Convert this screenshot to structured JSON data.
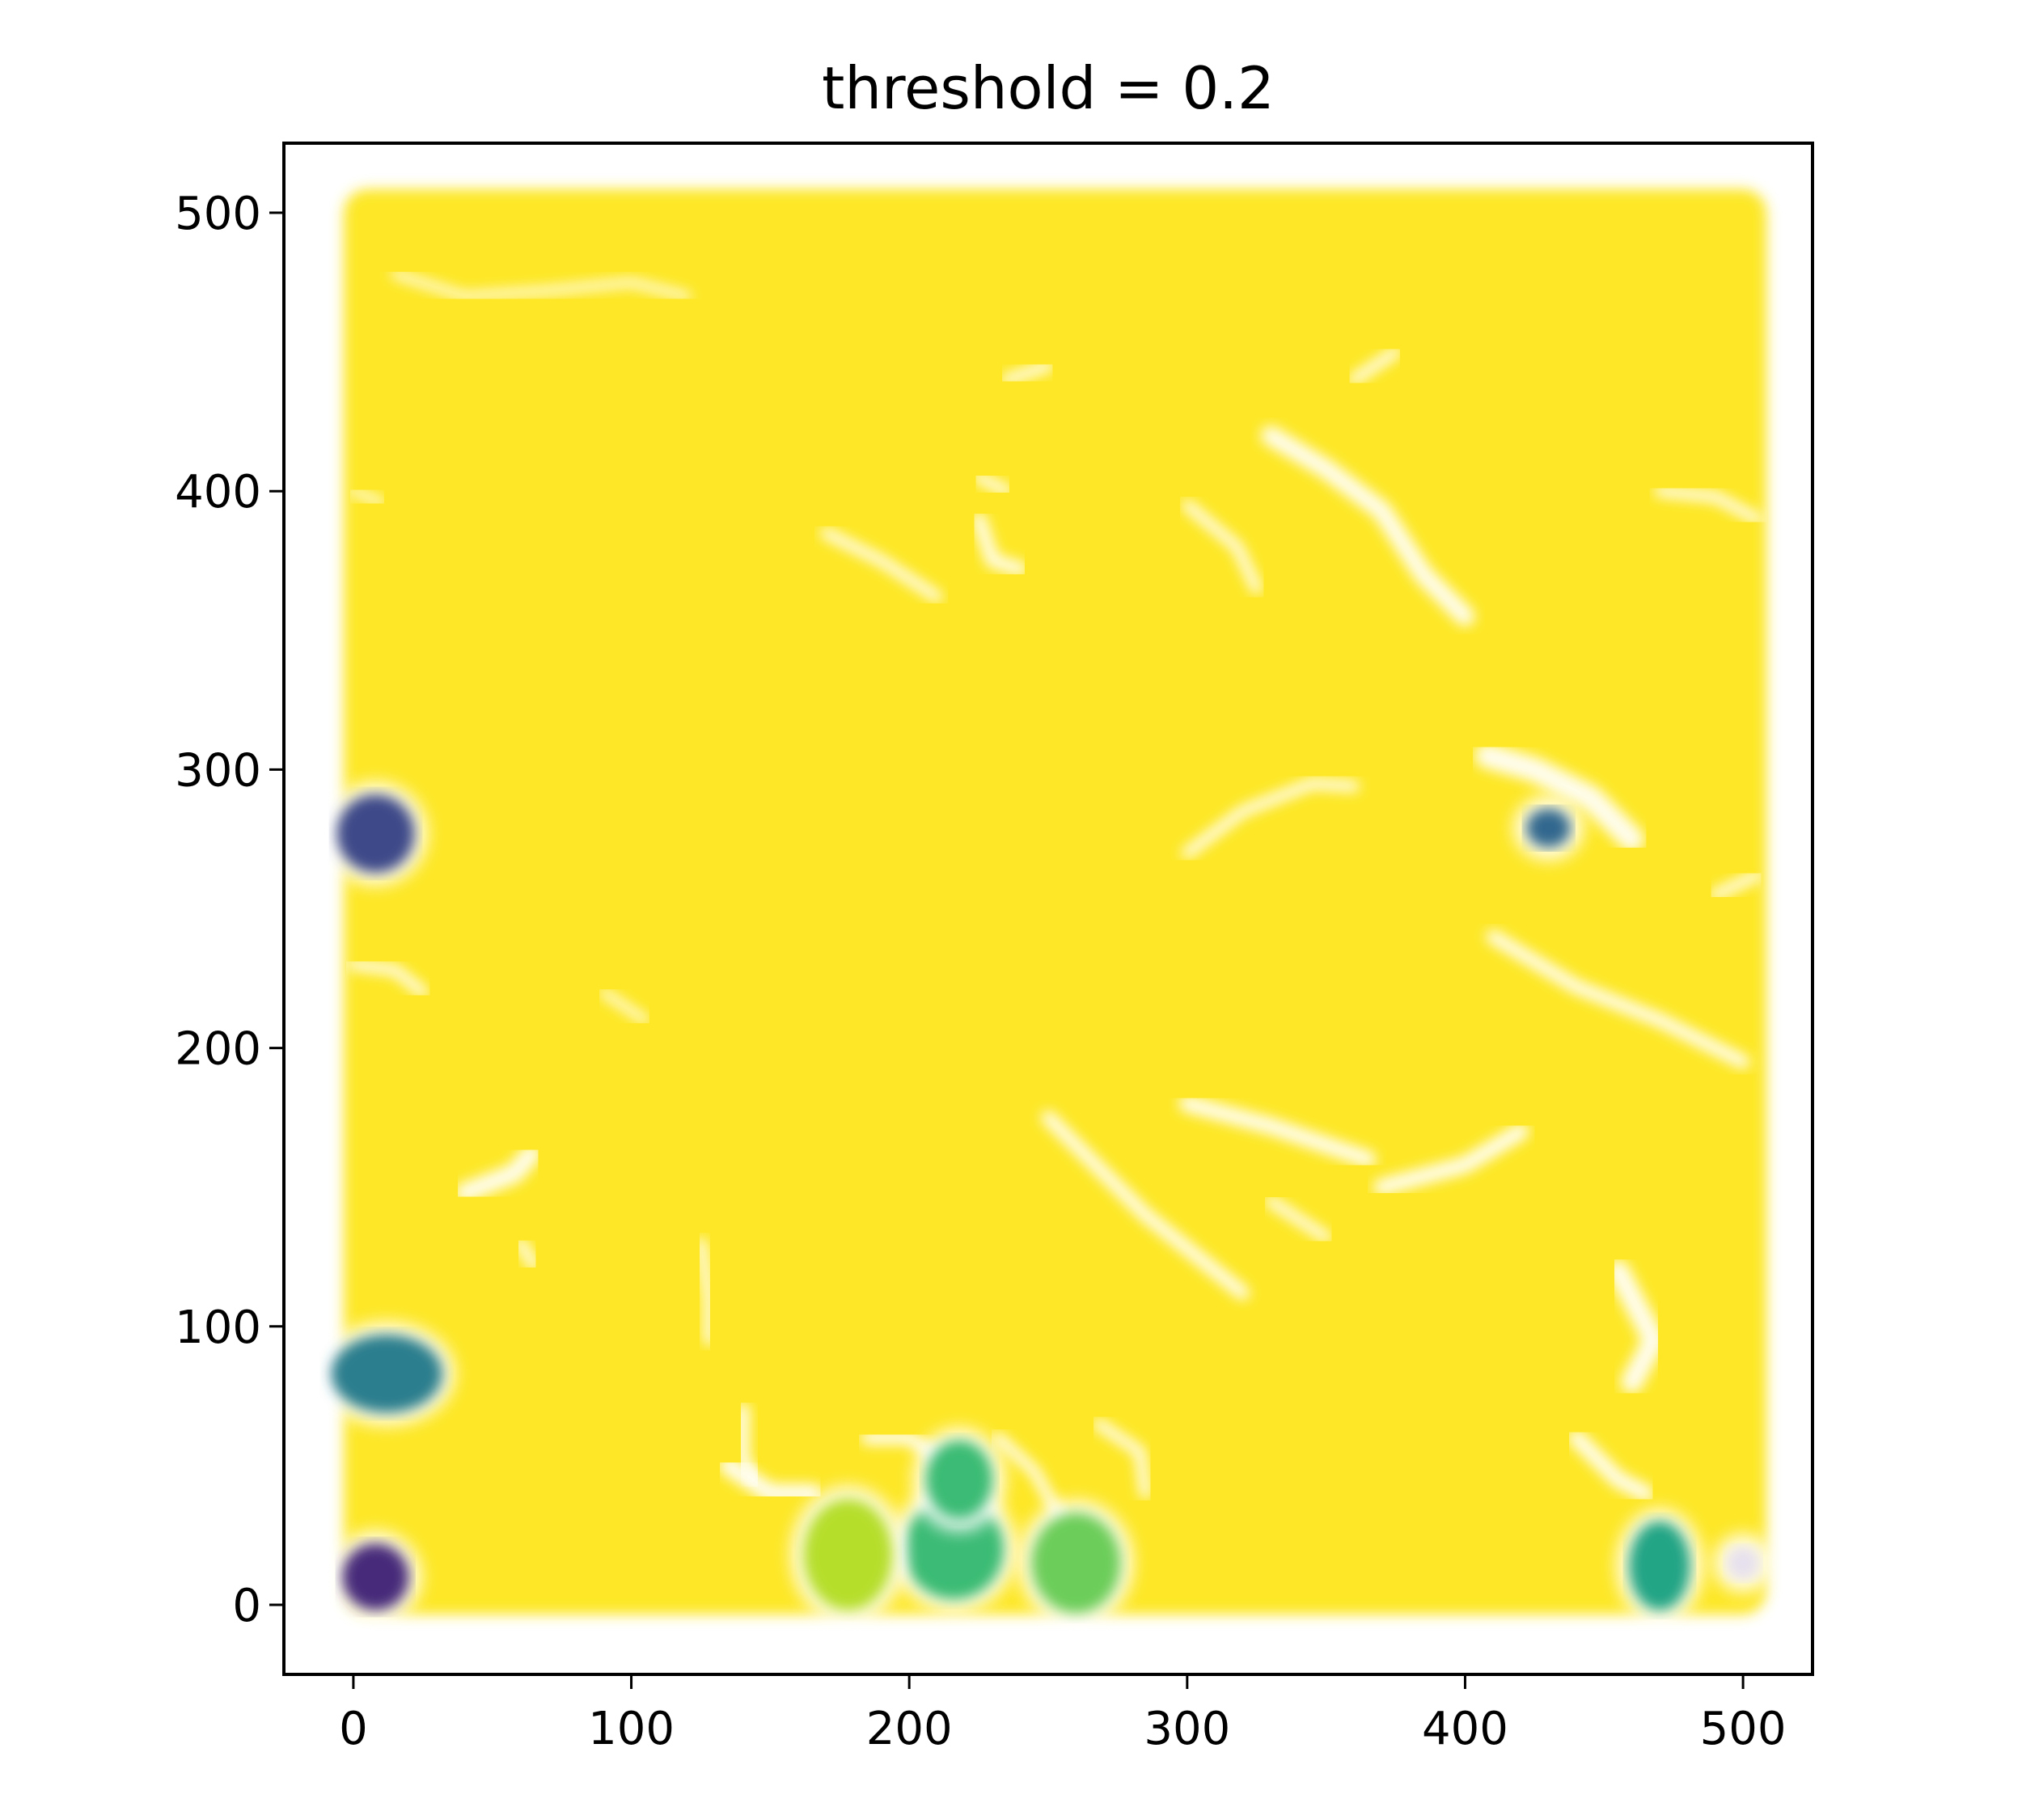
{
  "chart_data": {
    "type": "scatter",
    "title": "threshold = 0.2",
    "xlabel": "",
    "ylabel": "",
    "xlim": [
      -25,
      525
    ],
    "ylim": [
      -25,
      525
    ],
    "x_ticks": [
      0,
      100,
      200,
      300,
      400,
      500
    ],
    "y_ticks": [
      0,
      100,
      200,
      300,
      400,
      500
    ],
    "grid": false,
    "legend": "none",
    "background_cluster": {
      "description": "dense field of points covering most of the domain",
      "color": "#fde725",
      "x_range": [
        0,
        505
      ],
      "y_range": [
        0,
        505
      ]
    },
    "clusters": [
      {
        "x": 8,
        "y": 10,
        "rx": 12,
        "ry": 12,
        "color": "#472a7a"
      },
      {
        "x": 8,
        "y": 277,
        "rx": 14,
        "ry": 14,
        "color": "#3e4a89"
      },
      {
        "x": 12,
        "y": 83,
        "rx": 20,
        "ry": 14,
        "color": "#2c7e8e"
      },
      {
        "x": 430,
        "y": 279,
        "rx": 8,
        "ry": 7,
        "color": "#31688e"
      },
      {
        "x": 470,
        "y": 14,
        "rx": 11,
        "ry": 16,
        "color": "#21a585"
      },
      {
        "x": 216,
        "y": 20,
        "rx": 18,
        "ry": 18,
        "color": "#3bbb75"
      },
      {
        "x": 218,
        "y": 45,
        "rx": 12,
        "ry": 14,
        "color": "#3bbb75"
      },
      {
        "x": 260,
        "y": 15,
        "rx": 16,
        "ry": 18,
        "color": "#6ccd5a"
      },
      {
        "x": 178,
        "y": 18,
        "rx": 16,
        "ry": 20,
        "color": "#b5de2b"
      },
      {
        "x": 500,
        "y": 15,
        "rx": 6,
        "ry": 6,
        "color": "#e6e0ee"
      }
    ],
    "background_gaps": [
      {
        "points": [
          [
            330,
            420
          ],
          [
            350,
            408
          ],
          [
            370,
            393
          ],
          [
            385,
            370
          ],
          [
            400,
            355
          ]
        ],
        "w": 7
      },
      {
        "points": [
          [
            300,
            270
          ],
          [
            320,
            285
          ],
          [
            345,
            295
          ],
          [
            360,
            294
          ]
        ],
        "w": 4
      },
      {
        "points": [
          [
            408,
            305
          ],
          [
            425,
            300
          ],
          [
            445,
            290
          ],
          [
            460,
            275
          ]
        ],
        "w": 9
      },
      {
        "points": [
          [
            410,
            240
          ],
          [
            440,
            222
          ],
          [
            470,
            210
          ],
          [
            500,
            195
          ]
        ],
        "w": 5
      },
      {
        "points": [
          [
            300,
            180
          ],
          [
            330,
            172
          ],
          [
            365,
            160
          ]
        ],
        "w": 6
      },
      {
        "points": [
          [
            250,
            175
          ],
          [
            285,
            140
          ],
          [
            320,
            112
          ]
        ],
        "w": 5
      },
      {
        "points": [
          [
            370,
            150
          ],
          [
            400,
            158
          ],
          [
            420,
            170
          ]
        ],
        "w": 6
      },
      {
        "points": [
          [
            455,
            120
          ],
          [
            468,
            95
          ],
          [
            460,
            80
          ]
        ],
        "w": 8
      },
      {
        "points": [
          [
            440,
            60
          ],
          [
            455,
            45
          ],
          [
            465,
            40
          ]
        ],
        "w": 6
      },
      {
        "points": [
          [
            40,
            148
          ],
          [
            58,
            155
          ],
          [
            64,
            162
          ]
        ],
        "w": 7
      },
      {
        "points": [
          [
            60,
            130
          ],
          [
            65,
            122
          ]
        ],
        "w": 4
      },
      {
        "points": [
          [
            125,
            130
          ],
          [
            128,
            110
          ],
          [
            128,
            95
          ]
        ],
        "w": 4
      },
      {
        "points": [
          [
            140,
            70
          ],
          [
            140,
            52
          ],
          [
            145,
            45
          ]
        ],
        "w": 5
      },
      {
        "points": [
          [
            135,
            50
          ],
          [
            150,
            40
          ],
          [
            165,
            40
          ]
        ],
        "w": 7
      },
      {
        "points": [
          [
            185,
            60
          ],
          [
            200,
            60
          ],
          [
            215,
            50
          ]
        ],
        "w": 5
      },
      {
        "points": [
          [
            232,
            60
          ],
          [
            245,
            48
          ],
          [
            255,
            30
          ]
        ],
        "w": 4
      },
      {
        "points": [
          [
            268,
            65
          ],
          [
            283,
            55
          ],
          [
            285,
            40
          ]
        ],
        "w": 4
      },
      {
        "points": [
          [
            225,
            390
          ],
          [
            230,
            375
          ],
          [
            240,
            372
          ]
        ],
        "w": 5
      },
      {
        "points": [
          [
            225,
            405
          ],
          [
            235,
            400
          ]
        ],
        "w": 4
      },
      {
        "points": [
          [
            170,
            385
          ],
          [
            190,
            375
          ],
          [
            210,
            362
          ]
        ],
        "w": 4
      },
      {
        "points": [
          [
            300,
            395
          ],
          [
            318,
            380
          ],
          [
            325,
            365
          ]
        ],
        "w": 4
      },
      {
        "points": [
          [
            360,
            440
          ],
          [
            375,
            450
          ]
        ],
        "w": 4
      },
      {
        "points": [
          [
            235,
            440
          ],
          [
            250,
            445
          ]
        ],
        "w": 4
      },
      {
        "points": [
          [
            470,
            400
          ],
          [
            490,
            398
          ],
          [
            505,
            390
          ]
        ],
        "w": 4
      },
      {
        "points": [
          [
            490,
            255
          ],
          [
            505,
            262
          ]
        ],
        "w": 4
      },
      {
        "points": [
          [
            0,
            230
          ],
          [
            15,
            228
          ],
          [
            25,
            220
          ]
        ],
        "w": 4
      },
      {
        "points": [
          [
            0,
            400
          ],
          [
            10,
            396
          ]
        ],
        "w": 3
      },
      {
        "points": [
          [
            15,
            478
          ],
          [
            40,
            470
          ],
          [
            70,
            472
          ],
          [
            100,
            475
          ],
          [
            120,
            470
          ]
        ],
        "w": 3
      },
      {
        "points": [
          [
            330,
            145
          ],
          [
            350,
            132
          ]
        ],
        "w": 4
      },
      {
        "points": [
          [
            90,
            220
          ],
          [
            105,
            210
          ]
        ],
        "w": 3
      }
    ]
  }
}
